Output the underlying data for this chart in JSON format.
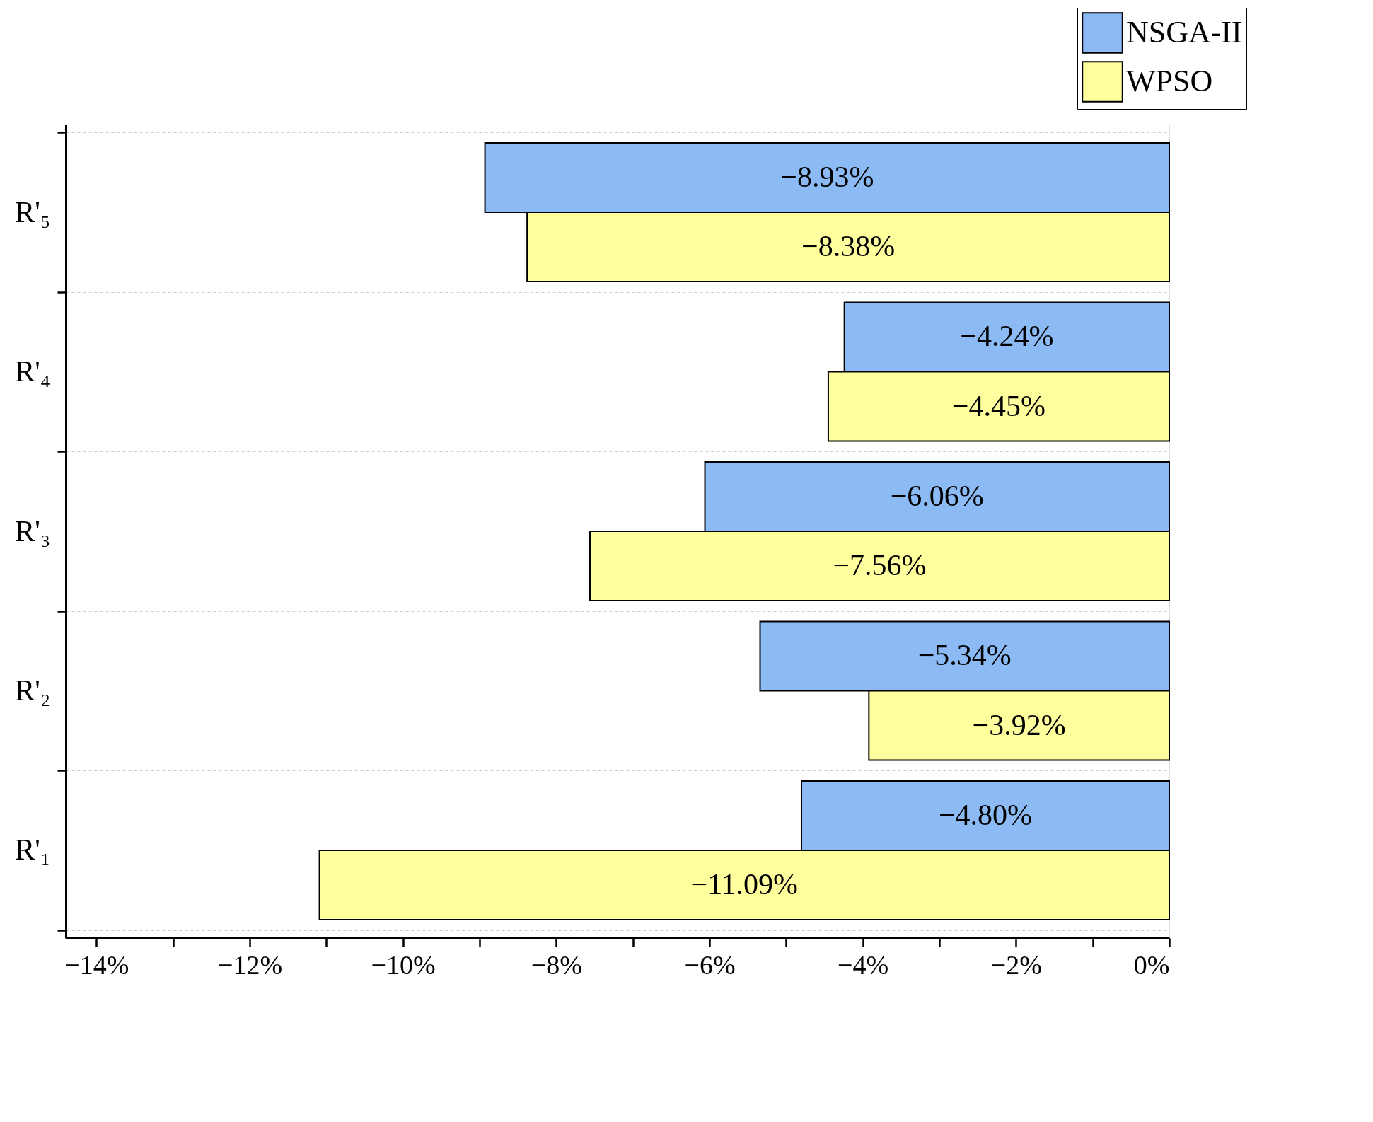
{
  "chart_data": {
    "type": "bar",
    "orientation": "horizontal",
    "categories": [
      "R'₅",
      "R'₄",
      "R'₃",
      "R'₂",
      "R'₁"
    ],
    "series": [
      {
        "name": "NSGA-II",
        "color": "#8cbaf5",
        "values": [
          -8.93,
          -4.24,
          -6.06,
          -5.34,
          -4.8
        ],
        "value_labels": [
          "−8.93%",
          "−4.24%",
          "−6.06%",
          "−5.34%",
          "−4.80%"
        ]
      },
      {
        "name": "WPSO",
        "color": "#ffff9e",
        "values": [
          -8.38,
          -4.45,
          -7.56,
          -3.92,
          -11.09
        ],
        "value_labels": [
          "−8.38%",
          "−4.45%",
          "−7.56%",
          "−3.92%",
          "−11.09%"
        ]
      }
    ],
    "xlim": [
      -14.4,
      0
    ],
    "xticks": [
      {
        "value": -14,
        "label": "−14%"
      },
      {
        "value": -13,
        "label": null
      },
      {
        "value": -12,
        "label": "−12%"
      },
      {
        "value": -11,
        "label": null
      },
      {
        "value": -10,
        "label": "−10%"
      },
      {
        "value": -9,
        "label": null
      },
      {
        "value": -8,
        "label": "−8%"
      },
      {
        "value": -7,
        "label": null
      },
      {
        "value": -6,
        "label": "−6%"
      },
      {
        "value": -5,
        "label": null
      },
      {
        "value": -4,
        "label": "−4%"
      },
      {
        "value": -3,
        "label": null
      },
      {
        "value": -2,
        "label": "−2%"
      },
      {
        "value": -1,
        "label": null
      },
      {
        "value": 0,
        "label": "0%"
      }
    ],
    "grid": "y",
    "legend": "top right"
  }
}
